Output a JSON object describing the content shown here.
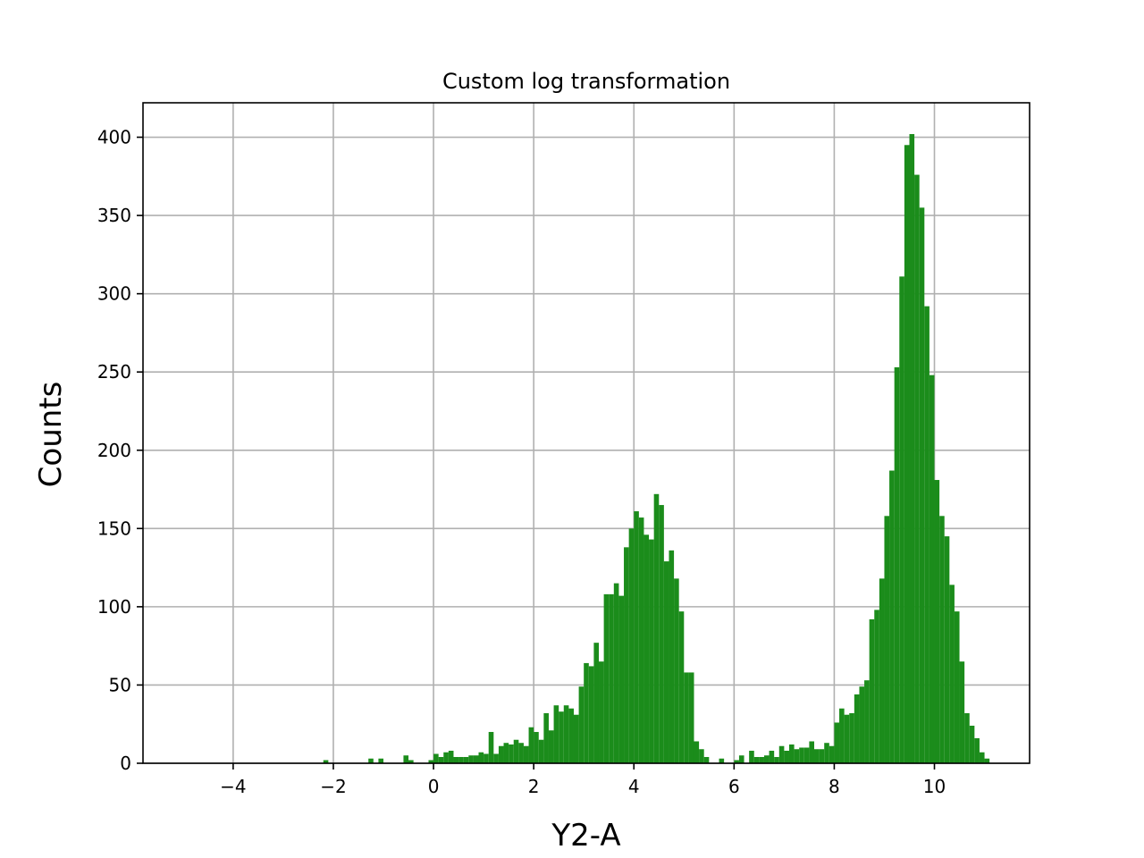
{
  "chart_data": {
    "type": "bar",
    "title": "Custom log transformation",
    "xlabel": "Y2-A",
    "ylabel": "Counts",
    "xlim": [
      -5.8,
      11.9
    ],
    "ylim": [
      0,
      422
    ],
    "xticks": [
      -4,
      -2,
      0,
      2,
      4,
      6,
      8,
      10
    ],
    "xtick_labels": [
      "−4",
      "−2",
      "0",
      "2",
      "4",
      "6",
      "8",
      "10"
    ],
    "yticks": [
      0,
      50,
      100,
      150,
      200,
      250,
      300,
      350,
      400
    ],
    "ytick_labels": [
      "0",
      "50",
      "100",
      "150",
      "200",
      "250",
      "300",
      "350",
      "400"
    ],
    "grid": true,
    "bar_color": "#1b8c1b",
    "bin_width": 0.1,
    "bins": [
      {
        "x": -2.2,
        "y": 2
      },
      {
        "x": -1.3,
        "y": 3
      },
      {
        "x": -1.1,
        "y": 3
      },
      {
        "x": -0.6,
        "y": 5
      },
      {
        "x": -0.5,
        "y": 2
      },
      {
        "x": -0.1,
        "y": 2
      },
      {
        "x": 0.0,
        "y": 6
      },
      {
        "x": 0.1,
        "y": 4
      },
      {
        "x": 0.2,
        "y": 7
      },
      {
        "x": 0.3,
        "y": 8
      },
      {
        "x": 0.4,
        "y": 4
      },
      {
        "x": 0.5,
        "y": 4
      },
      {
        "x": 0.6,
        "y": 4
      },
      {
        "x": 0.7,
        "y": 5
      },
      {
        "x": 0.8,
        "y": 5
      },
      {
        "x": 0.9,
        "y": 7
      },
      {
        "x": 1.0,
        "y": 6
      },
      {
        "x": 1.1,
        "y": 20
      },
      {
        "x": 1.2,
        "y": 6
      },
      {
        "x": 1.3,
        "y": 11
      },
      {
        "x": 1.4,
        "y": 13
      },
      {
        "x": 1.5,
        "y": 12
      },
      {
        "x": 1.6,
        "y": 15
      },
      {
        "x": 1.7,
        "y": 13
      },
      {
        "x": 1.8,
        "y": 11
      },
      {
        "x": 1.9,
        "y": 23
      },
      {
        "x": 2.0,
        "y": 20
      },
      {
        "x": 2.1,
        "y": 15
      },
      {
        "x": 2.2,
        "y": 32
      },
      {
        "x": 2.3,
        "y": 21
      },
      {
        "x": 2.4,
        "y": 37
      },
      {
        "x": 2.5,
        "y": 33
      },
      {
        "x": 2.6,
        "y": 37
      },
      {
        "x": 2.7,
        "y": 35
      },
      {
        "x": 2.8,
        "y": 31
      },
      {
        "x": 2.9,
        "y": 49
      },
      {
        "x": 3.0,
        "y": 64
      },
      {
        "x": 3.1,
        "y": 62
      },
      {
        "x": 3.2,
        "y": 77
      },
      {
        "x": 3.3,
        "y": 65
      },
      {
        "x": 3.4,
        "y": 108
      },
      {
        "x": 3.5,
        "y": 108
      },
      {
        "x": 3.6,
        "y": 115
      },
      {
        "x": 3.7,
        "y": 107
      },
      {
        "x": 3.8,
        "y": 138
      },
      {
        "x": 3.9,
        "y": 150
      },
      {
        "x": 4.0,
        "y": 161
      },
      {
        "x": 4.1,
        "y": 157
      },
      {
        "x": 4.2,
        "y": 146
      },
      {
        "x": 4.3,
        "y": 143
      },
      {
        "x": 4.4,
        "y": 172
      },
      {
        "x": 4.5,
        "y": 165
      },
      {
        "x": 4.6,
        "y": 129
      },
      {
        "x": 4.7,
        "y": 136
      },
      {
        "x": 4.8,
        "y": 118
      },
      {
        "x": 4.9,
        "y": 97
      },
      {
        "x": 5.0,
        "y": 58
      },
      {
        "x": 5.1,
        "y": 58
      },
      {
        "x": 5.2,
        "y": 14
      },
      {
        "x": 5.3,
        "y": 9
      },
      {
        "x": 5.4,
        "y": 4
      },
      {
        "x": 5.7,
        "y": 3
      },
      {
        "x": 6.0,
        "y": 2
      },
      {
        "x": 6.1,
        "y": 5
      },
      {
        "x": 6.3,
        "y": 8
      },
      {
        "x": 6.4,
        "y": 4
      },
      {
        "x": 6.5,
        "y": 4
      },
      {
        "x": 6.6,
        "y": 5
      },
      {
        "x": 6.7,
        "y": 8
      },
      {
        "x": 6.8,
        "y": 4
      },
      {
        "x": 6.9,
        "y": 11
      },
      {
        "x": 7.0,
        "y": 8
      },
      {
        "x": 7.1,
        "y": 12
      },
      {
        "x": 7.2,
        "y": 9
      },
      {
        "x": 7.3,
        "y": 10
      },
      {
        "x": 7.4,
        "y": 10
      },
      {
        "x": 7.5,
        "y": 14
      },
      {
        "x": 7.6,
        "y": 9
      },
      {
        "x": 7.7,
        "y": 9
      },
      {
        "x": 7.8,
        "y": 13
      },
      {
        "x": 7.9,
        "y": 11
      },
      {
        "x": 8.0,
        "y": 26
      },
      {
        "x": 8.1,
        "y": 35
      },
      {
        "x": 8.2,
        "y": 31
      },
      {
        "x": 8.3,
        "y": 32
      },
      {
        "x": 8.4,
        "y": 44
      },
      {
        "x": 8.5,
        "y": 49
      },
      {
        "x": 8.6,
        "y": 53
      },
      {
        "x": 8.7,
        "y": 92
      },
      {
        "x": 8.8,
        "y": 98
      },
      {
        "x": 8.9,
        "y": 118
      },
      {
        "x": 9.0,
        "y": 158
      },
      {
        "x": 9.1,
        "y": 187
      },
      {
        "x": 9.2,
        "y": 253
      },
      {
        "x": 9.3,
        "y": 311
      },
      {
        "x": 9.4,
        "y": 395
      },
      {
        "x": 9.5,
        "y": 402
      },
      {
        "x": 9.6,
        "y": 376
      },
      {
        "x": 9.7,
        "y": 355
      },
      {
        "x": 9.8,
        "y": 292
      },
      {
        "x": 9.9,
        "y": 248
      },
      {
        "x": 10.0,
        "y": 181
      },
      {
        "x": 10.1,
        "y": 158
      },
      {
        "x": 10.2,
        "y": 145
      },
      {
        "x": 10.3,
        "y": 114
      },
      {
        "x": 10.4,
        "y": 97
      },
      {
        "x": 10.5,
        "y": 65
      },
      {
        "x": 10.6,
        "y": 32
      },
      {
        "x": 10.7,
        "y": 24
      },
      {
        "x": 10.8,
        "y": 16
      },
      {
        "x": 10.9,
        "y": 7
      },
      {
        "x": 11.0,
        "y": 3
      }
    ]
  }
}
